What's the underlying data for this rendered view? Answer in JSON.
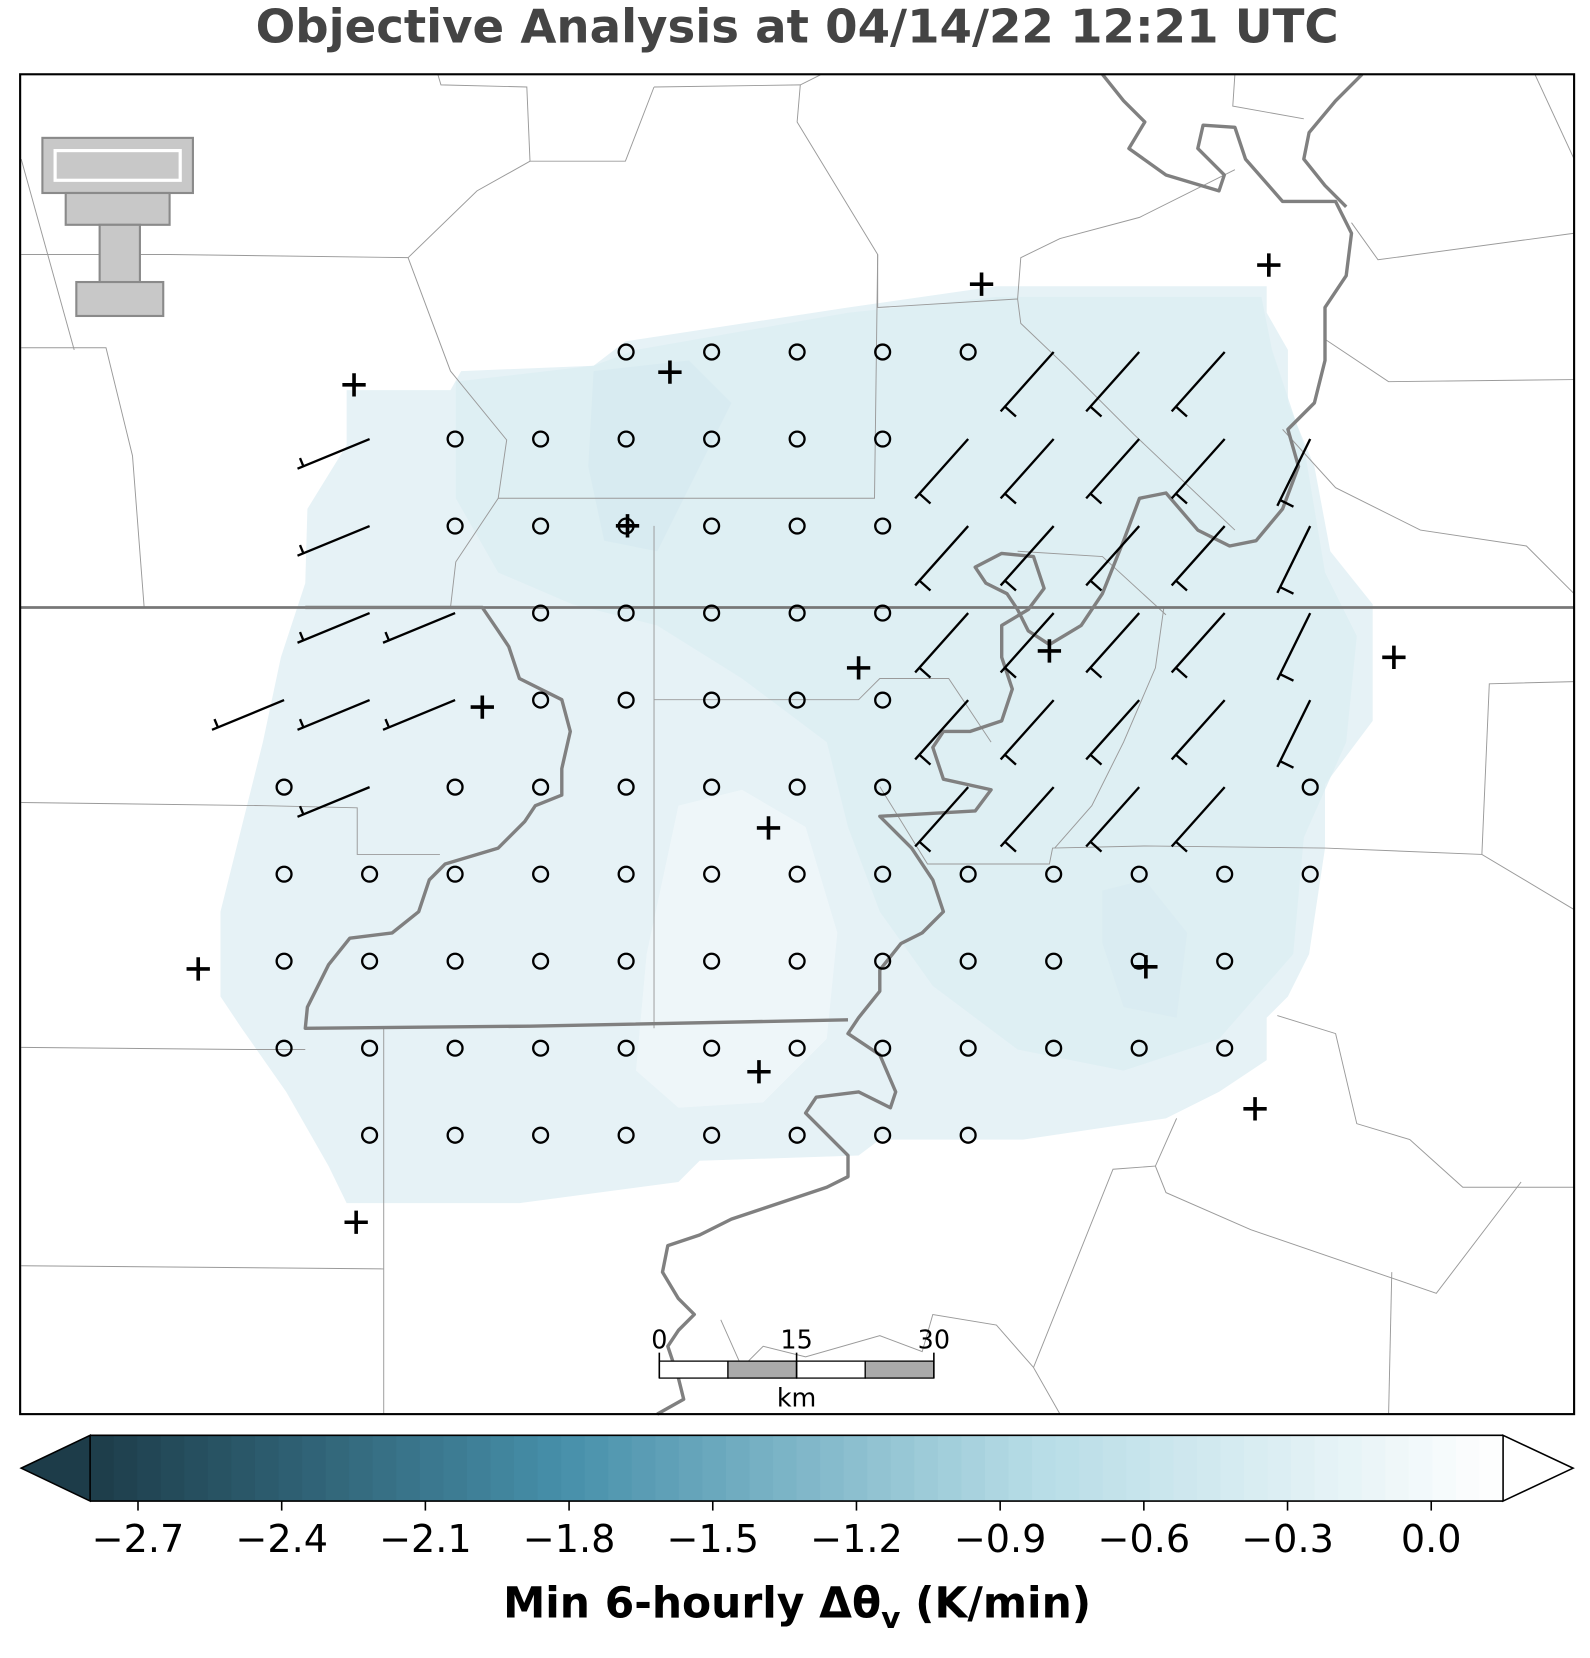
{
  "title": "Objective Analysis at 04/14/22 12:21 UTC",
  "colorbar": {
    "label_main": "Min 6-hourly Δθ",
    "label_sub": "v",
    "label_end": " (K/min)",
    "lim": [
      -2.8,
      0.15
    ],
    "ticks": [
      {
        "value": -2.7,
        "label": "−2.7"
      },
      {
        "value": -2.4,
        "label": "−2.4"
      },
      {
        "value": -2.1,
        "label": "−2.1"
      },
      {
        "value": -1.8,
        "label": "−1.8"
      },
      {
        "value": -1.5,
        "label": "−1.5"
      },
      {
        "value": -1.2,
        "label": "−1.2"
      },
      {
        "value": -0.9,
        "label": "−0.9"
      },
      {
        "value": -0.6,
        "label": "−0.6"
      },
      {
        "value": -0.3,
        "label": "−0.3"
      },
      {
        "value": 0,
        "label": "0.0"
      }
    ],
    "colors": [
      "#1d3c49",
      "#468fa9",
      "#b6dce6",
      "#ffffff"
    ],
    "extend": "both"
  },
  "scale_bar": {
    "ticks": [
      0,
      15,
      30
    ],
    "unit": "km"
  }
}
